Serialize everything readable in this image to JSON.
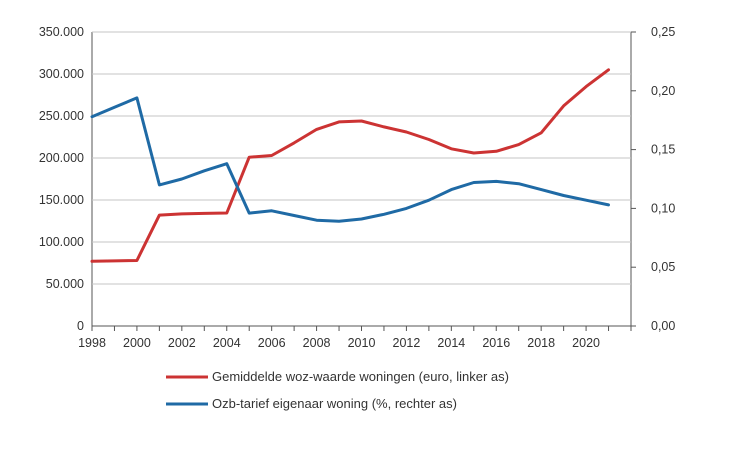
{
  "chart_data": {
    "type": "line",
    "x": [
      1998,
      1999,
      2000,
      2001,
      2002,
      2003,
      2004,
      2005,
      2006,
      2007,
      2008,
      2009,
      2010,
      2011,
      2012,
      2013,
      2014,
      2015,
      2016,
      2017,
      2018,
      2019,
      2020,
      2021
    ],
    "series": [
      {
        "name": "Gemiddelde woz-waarde woningen (euro, linker as)",
        "axis": "left",
        "color": "#cc3333",
        "values": [
          77000,
          77500,
          78000,
          132000,
          133500,
          134000,
          134500,
          201000,
          203000,
          218000,
          234000,
          243000,
          244000,
          237000,
          231000,
          222000,
          211000,
          206000,
          208000,
          216000,
          230000,
          262000,
          285000,
          305000
        ]
      },
      {
        "name": "Ozb-tarief eigenaar woning (%, rechter as)",
        "axis": "right",
        "color": "#1f6aa5",
        "values": [
          0.178,
          0.186,
          0.194,
          0.12,
          0.125,
          0.132,
          0.138,
          0.096,
          0.098,
          0.094,
          0.09,
          0.089,
          0.091,
          0.095,
          0.1,
          0.107,
          0.116,
          0.122,
          0.123,
          0.121,
          0.116,
          0.111,
          0.107,
          0.103
        ]
      }
    ],
    "yleft_ticks": [
      "0",
      "50.000",
      "100.000",
      "150.000",
      "200.000",
      "250.000",
      "300.000",
      "350.000"
    ],
    "yleft_lim": [
      0,
      350000
    ],
    "yright_ticks": [
      "0,00",
      "0,05",
      "0,10",
      "0,15",
      "0,20",
      "0,25"
    ],
    "yright_lim": [
      0,
      0.25
    ],
    "xticks": [
      "1998",
      "2000",
      "2002",
      "2004",
      "2006",
      "2008",
      "2010",
      "2012",
      "2014",
      "2016",
      "2018",
      "2020"
    ],
    "xlim": [
      1998,
      2022
    ],
    "grid": true,
    "legend_position": "bottom"
  }
}
